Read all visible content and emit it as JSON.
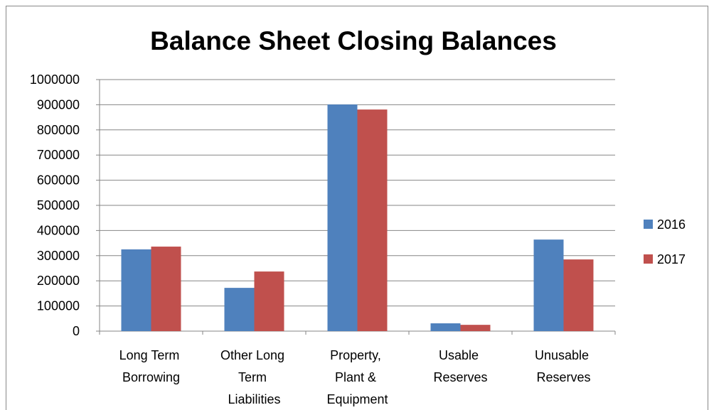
{
  "chart_data": {
    "type": "bar",
    "title": "Balance Sheet Closing Balances",
    "categories": [
      "Long Term Borrowing",
      "Other Long Term Liabilities",
      "Property, Plant & Equipment",
      "Usable Reserves",
      "Unusable Reserves"
    ],
    "series": [
      {
        "name": "2016",
        "color": "#4f81bd",
        "values": [
          325000,
          172000,
          901000,
          31000,
          364000
        ]
      },
      {
        "name": "2017",
        "color": "#c0504d",
        "values": [
          336000,
          237000,
          881000,
          25000,
          285000
        ]
      }
    ],
    "ylim": [
      0,
      1000000
    ],
    "yticks": [
      0,
      100000,
      200000,
      300000,
      400000,
      500000,
      600000,
      700000,
      800000,
      900000,
      1000000
    ],
    "grid": true,
    "legend": "right"
  }
}
